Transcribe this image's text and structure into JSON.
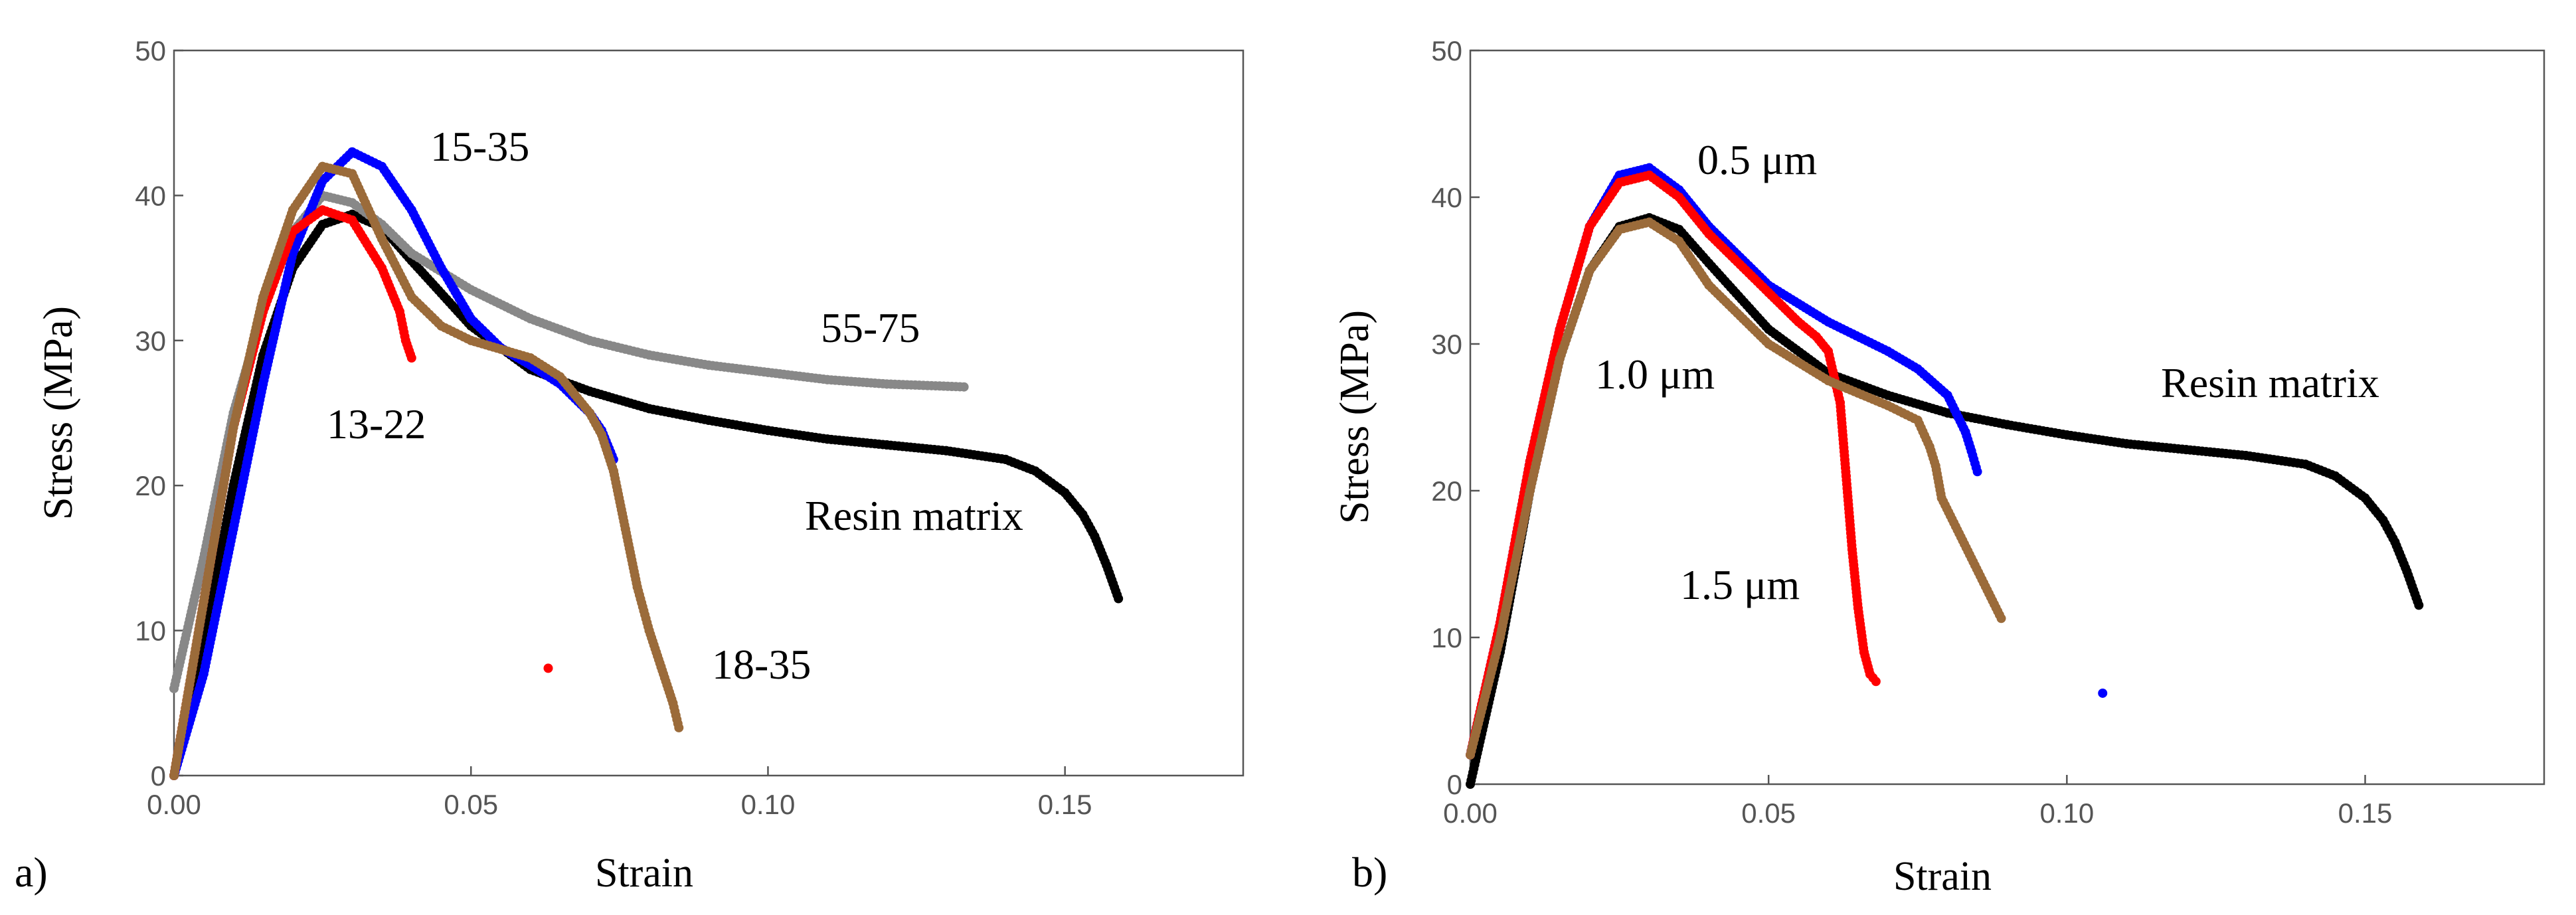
{
  "figure": {
    "panel_letters": [
      "a)",
      "b)"
    ]
  },
  "chart_data": [
    {
      "type": "scatter",
      "panel": "a)",
      "title": "",
      "xlabel": "Strain",
      "ylabel": "Stress (MPa)",
      "xlim": [
        0,
        0.18
      ],
      "ylim": [
        0,
        50
      ],
      "xticks": [
        "0.00",
        "0.05",
        "0.10",
        "0.15"
      ],
      "yticks": [
        "0",
        "10",
        "20",
        "30",
        "40",
        "50"
      ],
      "grid": false,
      "series": [
        {
          "name": "Resin matrix",
          "color": "#000000",
          "points": [
            [
              0,
              0
            ],
            [
              0.005,
              9
            ],
            [
              0.01,
              20
            ],
            [
              0.015,
              29
            ],
            [
              0.02,
              35
            ],
            [
              0.025,
              38
            ],
            [
              0.03,
              38.7
            ],
            [
              0.035,
              37.8
            ],
            [
              0.04,
              35.5
            ],
            [
              0.05,
              31
            ],
            [
              0.06,
              28
            ],
            [
              0.07,
              26.5
            ],
            [
              0.08,
              25.3
            ],
            [
              0.09,
              24.5
            ],
            [
              0.1,
              23.8
            ],
            [
              0.11,
              23.2
            ],
            [
              0.12,
              22.8
            ],
            [
              0.13,
              22.4
            ],
            [
              0.14,
              21.8
            ],
            [
              0.145,
              21
            ],
            [
              0.15,
              19.5
            ],
            [
              0.153,
              18
            ],
            [
              0.155,
              16.5
            ],
            [
              0.157,
              14.5
            ],
            [
              0.159,
              12.2
            ]
          ]
        },
        {
          "name": "55-75",
          "color": "#888888",
          "points": [
            [
              0,
              6
            ],
            [
              0.005,
              15
            ],
            [
              0.01,
              25
            ],
            [
              0.015,
              32
            ],
            [
              0.02,
              37.5
            ],
            [
              0.025,
              40
            ],
            [
              0.03,
              39.5
            ],
            [
              0.035,
              38
            ],
            [
              0.04,
              36
            ],
            [
              0.05,
              33.5
            ],
            [
              0.06,
              31.5
            ],
            [
              0.07,
              30
            ],
            [
              0.08,
              29
            ],
            [
              0.09,
              28.3
            ],
            [
              0.1,
              27.8
            ],
            [
              0.11,
              27.3
            ],
            [
              0.12,
              27
            ],
            [
              0.133,
              26.8
            ]
          ]
        },
        {
          "name": "15-35",
          "color": "#0000ff",
          "points": [
            [
              0,
              0
            ],
            [
              0.005,
              7
            ],
            [
              0.01,
              17
            ],
            [
              0.015,
              27
            ],
            [
              0.02,
              36
            ],
            [
              0.025,
              41
            ],
            [
              0.03,
              43
            ],
            [
              0.035,
              42
            ],
            [
              0.04,
              39
            ],
            [
              0.045,
              35
            ],
            [
              0.05,
              31.5
            ],
            [
              0.055,
              29.5
            ],
            [
              0.06,
              28.3
            ],
            [
              0.065,
              27
            ],
            [
              0.07,
              25
            ],
            [
              0.072,
              23.8
            ],
            [
              0.074,
              21.8
            ]
          ]
        },
        {
          "name": "13-22",
          "color": "#ff0000",
          "points": [
            [
              0,
              0
            ],
            [
              0.005,
              12
            ],
            [
              0.01,
              24
            ],
            [
              0.015,
              32
            ],
            [
              0.02,
              37.5
            ],
            [
              0.025,
              39
            ],
            [
              0.03,
              38.3
            ],
            [
              0.035,
              35
            ],
            [
              0.038,
              32
            ],
            [
              0.039,
              30
            ],
            [
              0.04,
              28.8
            ],
            [
              0.063,
              7.4
            ]
          ]
        },
        {
          "name": "18-35",
          "color": "#9b6b3a",
          "points": [
            [
              0,
              0
            ],
            [
              0.005,
              12
            ],
            [
              0.01,
              24
            ],
            [
              0.015,
              33
            ],
            [
              0.02,
              39
            ],
            [
              0.025,
              42
            ],
            [
              0.03,
              41.5
            ],
            [
              0.035,
              37
            ],
            [
              0.04,
              33
            ],
            [
              0.045,
              31
            ],
            [
              0.05,
              30
            ],
            [
              0.06,
              28.8
            ],
            [
              0.065,
              27.5
            ],
            [
              0.07,
              25
            ],
            [
              0.072,
              23.5
            ],
            [
              0.074,
              21
            ],
            [
              0.076,
              17
            ],
            [
              0.078,
              13
            ],
            [
              0.08,
              10
            ],
            [
              0.082,
              7.5
            ],
            [
              0.084,
              5
            ],
            [
              0.085,
              3.3
            ]
          ]
        }
      ],
      "annotations": [
        "15-35",
        "55-75",
        "13-22",
        "Resin matrix",
        "18-35"
      ]
    },
    {
      "type": "scatter",
      "panel": "b)",
      "title": "",
      "xlabel": "Strain",
      "ylabel": "Stress  (MPa)",
      "xlim": [
        0,
        0.18
      ],
      "ylim": [
        0,
        50
      ],
      "xticks": [
        "0.00",
        "0.05",
        "0.10",
        "0.15"
      ],
      "yticks": [
        "0",
        "10",
        "20",
        "30",
        "40",
        "50"
      ],
      "grid": false,
      "series": [
        {
          "name": "Resin matrix",
          "color": "#000000",
          "points": [
            [
              0,
              0
            ],
            [
              0.005,
              9
            ],
            [
              0.01,
              20
            ],
            [
              0.015,
              29
            ],
            [
              0.02,
              35
            ],
            [
              0.025,
              38
            ],
            [
              0.03,
              38.6
            ],
            [
              0.035,
              37.8
            ],
            [
              0.04,
              35.5
            ],
            [
              0.05,
              31
            ],
            [
              0.06,
              28
            ],
            [
              0.07,
              26.5
            ],
            [
              0.08,
              25.3
            ],
            [
              0.09,
              24.5
            ],
            [
              0.1,
              23.8
            ],
            [
              0.11,
              23.2
            ],
            [
              0.12,
              22.8
            ],
            [
              0.13,
              22.4
            ],
            [
              0.14,
              21.8
            ],
            [
              0.145,
              21
            ],
            [
              0.15,
              19.5
            ],
            [
              0.153,
              18
            ],
            [
              0.155,
              16.5
            ],
            [
              0.157,
              14.5
            ],
            [
              0.159,
              12.2
            ]
          ]
        },
        {
          "name": "0.5 μm",
          "color": "#0000ff",
          "points": [
            [
              0,
              2
            ],
            [
              0.005,
              11
            ],
            [
              0.01,
              22
            ],
            [
              0.015,
              31
            ],
            [
              0.02,
              38
            ],
            [
              0.025,
              41.5
            ],
            [
              0.03,
              42
            ],
            [
              0.035,
              40.5
            ],
            [
              0.04,
              38
            ],
            [
              0.05,
              34
            ],
            [
              0.06,
              31.5
            ],
            [
              0.07,
              29.5
            ],
            [
              0.075,
              28.3
            ],
            [
              0.08,
              26.5
            ],
            [
              0.083,
              24
            ],
            [
              0.084,
              22.7
            ],
            [
              0.085,
              21.3
            ],
            [
              0.106,
              6.2
            ]
          ]
        },
        {
          "name": "1.5 μm",
          "color": "#ff0000",
          "points": [
            [
              0,
              2
            ],
            [
              0.005,
              11
            ],
            [
              0.01,
              22
            ],
            [
              0.015,
              31
            ],
            [
              0.02,
              38
            ],
            [
              0.025,
              41
            ],
            [
              0.03,
              41.5
            ],
            [
              0.035,
              40
            ],
            [
              0.04,
              37.5
            ],
            [
              0.05,
              33.5
            ],
            [
              0.055,
              31.5
            ],
            [
              0.058,
              30.5
            ],
            [
              0.06,
              29.5
            ],
            [
              0.062,
              26
            ],
            [
              0.063,
              21
            ],
            [
              0.064,
              16
            ],
            [
              0.065,
              12
            ],
            [
              0.066,
              9
            ],
            [
              0.067,
              7.5
            ],
            [
              0.068,
              7
            ]
          ]
        },
        {
          "name": "1.0 μm",
          "color": "#9b6b3a",
          "points": [
            [
              0,
              2
            ],
            [
              0.005,
              10
            ],
            [
              0.01,
              20
            ],
            [
              0.015,
              29
            ],
            [
              0.02,
              35
            ],
            [
              0.025,
              37.8
            ],
            [
              0.03,
              38.3
            ],
            [
              0.035,
              37
            ],
            [
              0.04,
              34
            ],
            [
              0.05,
              30
            ],
            [
              0.06,
              27.5
            ],
            [
              0.07,
              25.8
            ],
            [
              0.075,
              24.8
            ],
            [
              0.077,
              23
            ],
            [
              0.078,
              21.7
            ],
            [
              0.079,
              19.5
            ],
            [
              0.089,
              11.3
            ]
          ]
        }
      ],
      "annotations": [
        "0.5 μm",
        "1.0 μm",
        "Resin matrix",
        "1.5 μm"
      ]
    }
  ]
}
